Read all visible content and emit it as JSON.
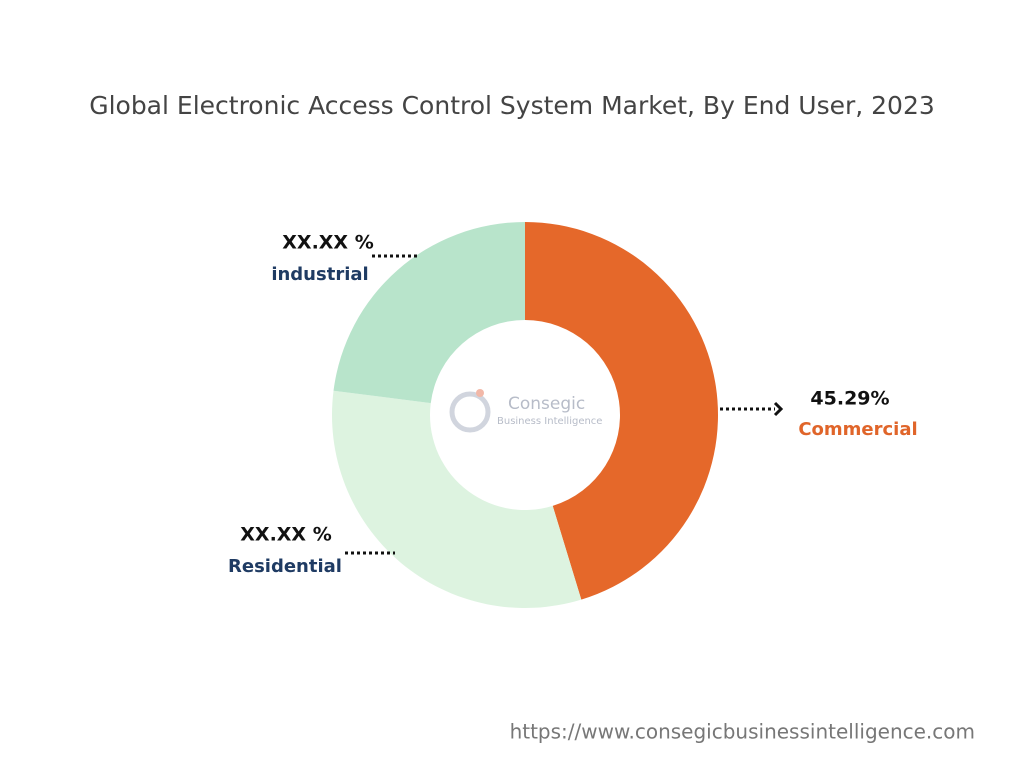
{
  "chart_data": {
    "type": "pie",
    "donut": true,
    "title": "Global Electronic Access Control System Market, By End User, 2023",
    "categories": [
      "Commercial",
      "Residential",
      "industrial"
    ],
    "values": [
      45.29,
      31.71,
      23.0
    ],
    "value_labels": [
      "45.29%",
      "XX.XX %",
      "XX.XX %"
    ],
    "colors": [
      "#e5682a",
      "#ddf3e0",
      "#b8e4cb"
    ],
    "label_colors": [
      "#e0652a",
      "#1f3b63",
      "#1f3b63"
    ],
    "watermark": {
      "name": "Consegic",
      "tagline": "Business Intelligence"
    },
    "source": "https://www.consegicbusinessintelligence.com"
  }
}
